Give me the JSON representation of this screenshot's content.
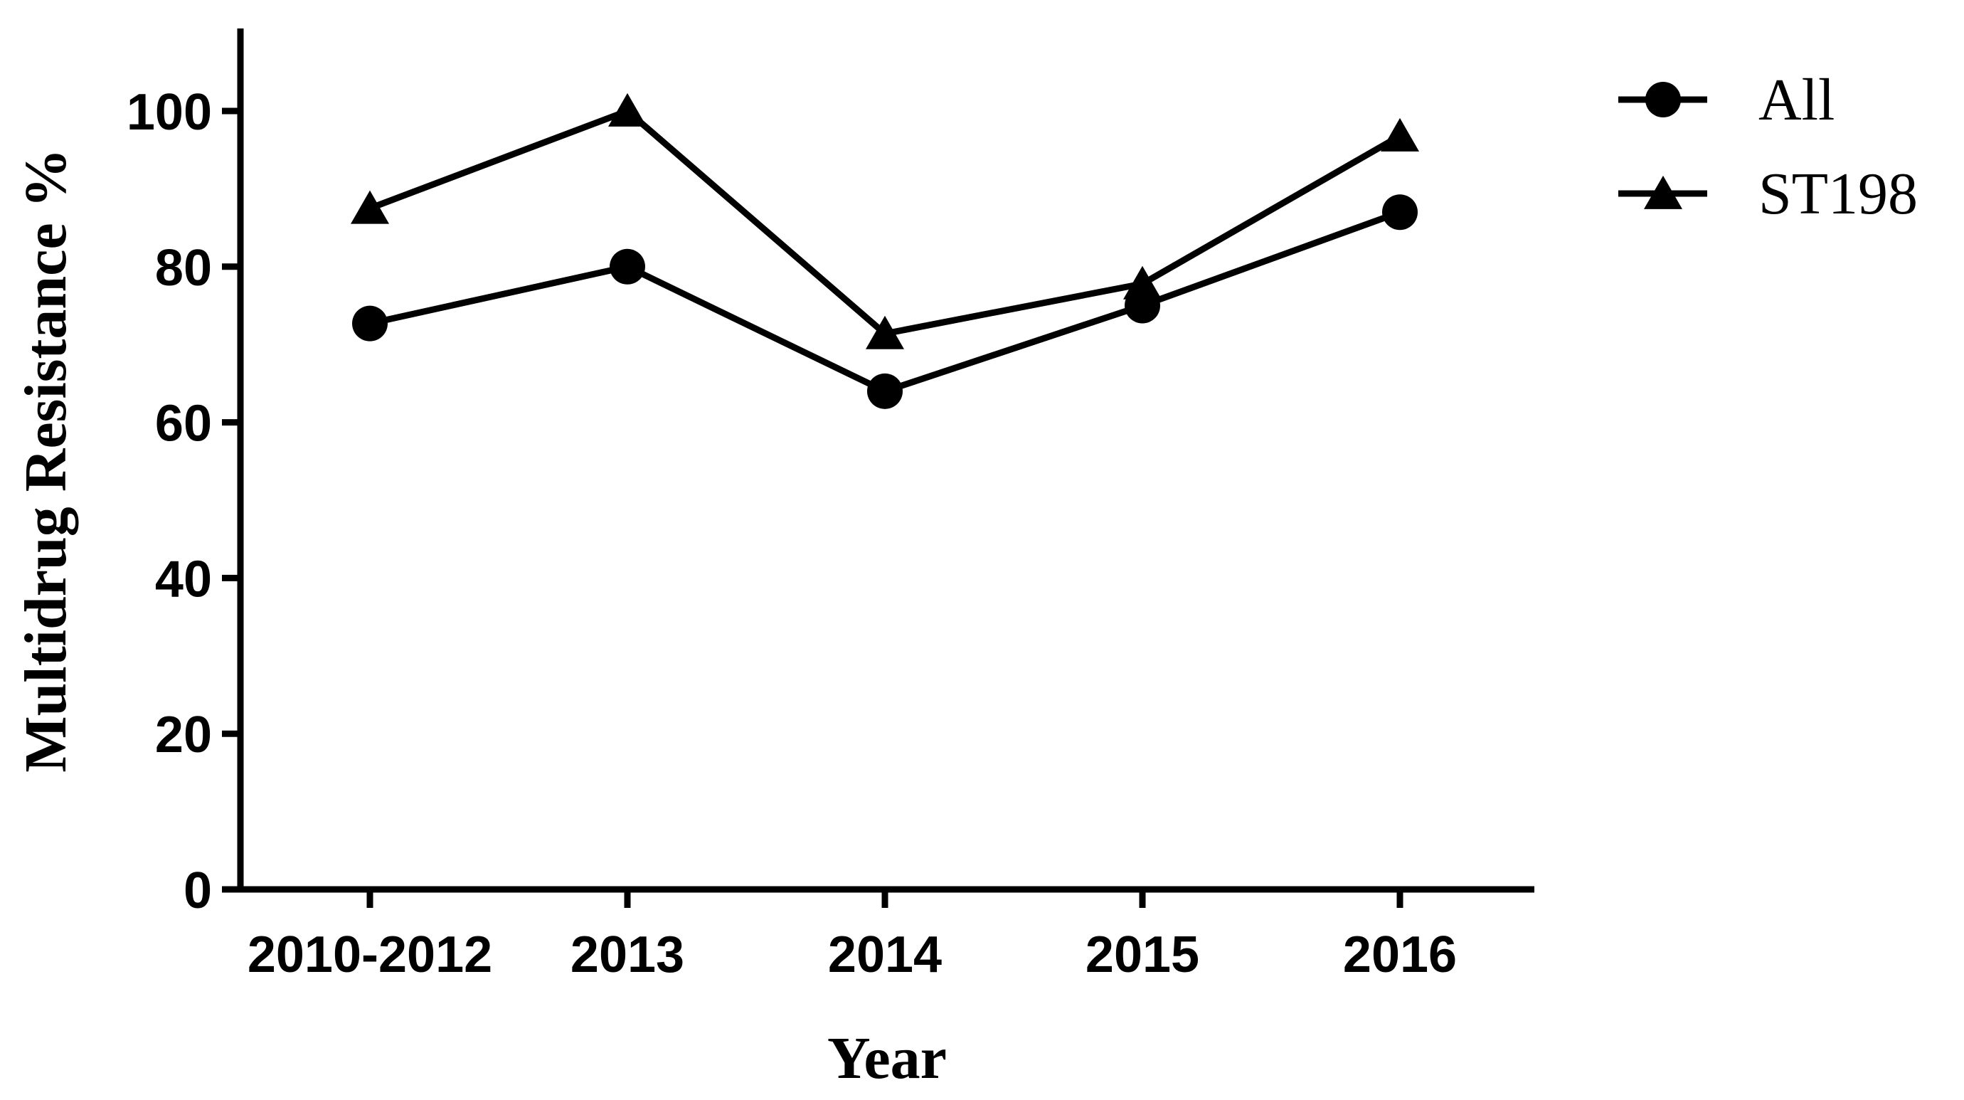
{
  "chart_data": {
    "type": "line",
    "title": "",
    "xlabel": "Year",
    "ylabel": "Multidrug Resistance %",
    "categories": [
      "2010-2012",
      "2013",
      "2014",
      "2015",
      "2016"
    ],
    "ylim": [
      0,
      110
    ],
    "yticks": [
      0,
      20,
      40,
      60,
      80,
      100
    ],
    "grid": false,
    "legend_position": "top-right",
    "series": [
      {
        "name": "All",
        "marker": "circle",
        "values": [
          72.7,
          80,
          64,
          75,
          87
        ]
      },
      {
        "name": "ST198",
        "marker": "triangle",
        "values": [
          87.5,
          100,
          71.4,
          77.8,
          96.8
        ]
      }
    ],
    "colors": {
      "line": "#000000",
      "background": "#ffffff"
    }
  }
}
